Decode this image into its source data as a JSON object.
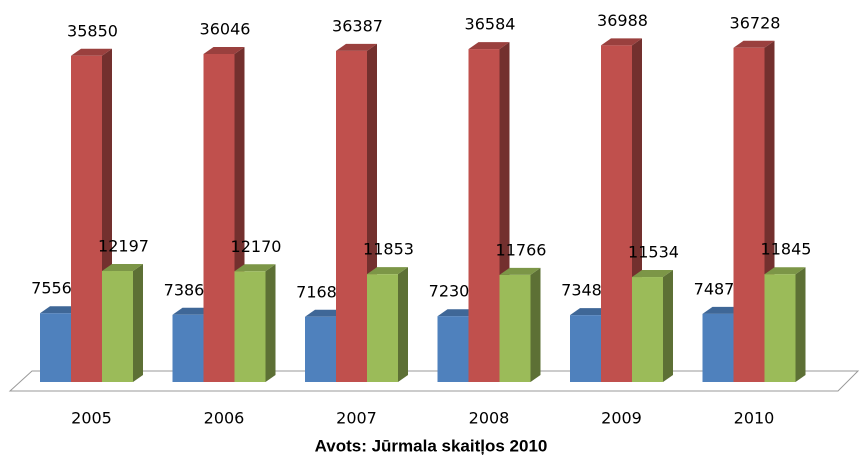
{
  "chart_data": {
    "type": "bar3d",
    "categories": [
      "2005",
      "2006",
      "2007",
      "2008",
      "2009",
      "2010"
    ],
    "series": [
      {
        "color": "#4f81bd",
        "values": [
          7556,
          7386,
          7168,
          7230,
          7348,
          7487
        ]
      },
      {
        "color": "#c0504d",
        "values": [
          35850,
          36046,
          36387,
          36584,
          36988,
          36728
        ]
      },
      {
        "color": "#9bbb59",
        "values": [
          12197,
          12170,
          11853,
          11766,
          11534,
          11845
        ]
      }
    ],
    "ylim": [
      0,
      40000
    ],
    "source": "Avots: Jūrmala skaitļos 2010"
  }
}
